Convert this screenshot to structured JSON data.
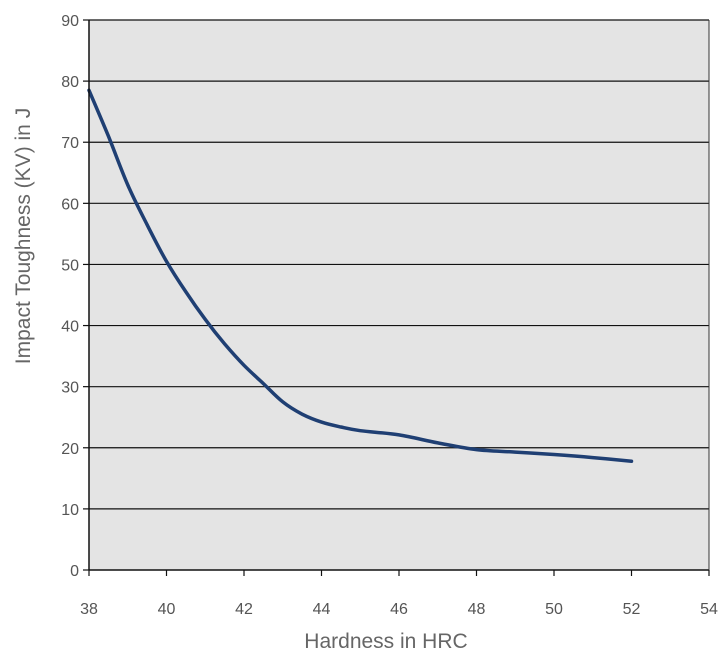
{
  "chart_data": {
    "type": "line",
    "title": "",
    "xlabel": "Hardness in HRC",
    "ylabel": "Impact Toughness (KV) in J",
    "xlim": [
      38,
      54
    ],
    "ylim": [
      0,
      90
    ],
    "x_ticks": [
      38,
      40,
      42,
      44,
      46,
      48,
      50,
      52,
      54
    ],
    "y_ticks": [
      0,
      10,
      20,
      30,
      40,
      50,
      60,
      70,
      80,
      90
    ],
    "grid": "horizontal",
    "legend": "none",
    "plot_background": "#e4e4e4",
    "series": [
      {
        "color": "#1f3f73",
        "x": [
          38,
          38.5,
          39,
          39.5,
          40,
          40.5,
          41,
          41.5,
          42,
          42.5,
          43,
          43.5,
          44,
          44.5,
          45,
          46,
          47,
          48,
          49,
          50,
          51,
          52
        ],
        "y": [
          78.5,
          71,
          63,
          56.5,
          50.5,
          45.5,
          41,
          37,
          33.5,
          30.5,
          27.5,
          25.5,
          24.2,
          23.4,
          22.8,
          22.1,
          20.8,
          19.7,
          19.3,
          18.9,
          18.4,
          17.8
        ]
      }
    ]
  }
}
